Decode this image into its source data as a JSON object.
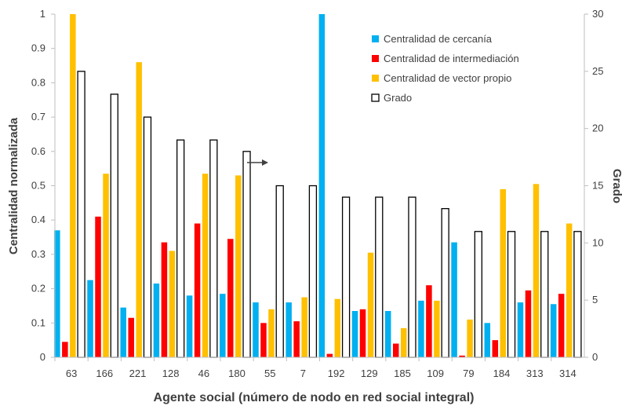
{
  "chart_data": {
    "type": "bar",
    "categories": [
      "63",
      "166",
      "221",
      "128",
      "46",
      "180",
      "55",
      "7",
      "192",
      "129",
      "185",
      "109",
      "79",
      "184",
      "313",
      "314"
    ],
    "series": [
      {
        "name": "Centralidad de cercanía",
        "axis": "left",
        "color": "#00B0F0",
        "values": [
          0.37,
          0.225,
          0.145,
          0.215,
          0.18,
          0.185,
          0.16,
          0.16,
          1.0,
          0.135,
          0.135,
          0.165,
          0.335,
          0.1,
          0.16,
          0.155
        ]
      },
      {
        "name": "Centralidad de intermediación",
        "axis": "left",
        "color": "#FF0000",
        "values": [
          0.045,
          0.41,
          0.115,
          0.335,
          0.39,
          0.345,
          0.1,
          0.105,
          0.01,
          0.14,
          0.04,
          0.21,
          0.005,
          0.05,
          0.195,
          0.185
        ]
      },
      {
        "name": "Centralidad de vector propio",
        "axis": "left",
        "color": "#FFC000",
        "values": [
          1.0,
          0.535,
          0.86,
          0.31,
          0.535,
          0.53,
          0.14,
          0.175,
          0.17,
          0.305,
          0.085,
          0.165,
          0.11,
          0.49,
          0.505,
          0.39
        ]
      },
      {
        "name": "Grado",
        "axis": "right",
        "color": "#000000",
        "style": "outline",
        "values": [
          25,
          23,
          21,
          19,
          19,
          18,
          15,
          15,
          14,
          14,
          14,
          13,
          11,
          11,
          11,
          11
        ]
      }
    ],
    "ylabel": "Centralidad normalizada",
    "y2label": "Grado",
    "xlabel": "Agente social (número de nodo en red social integral)",
    "ylim": [
      0,
      1
    ],
    "y2lim": [
      0,
      30
    ],
    "yticks": [
      "0",
      "0.1",
      "0.2",
      "0.3",
      "0.4",
      "0.5",
      "0.6",
      "0.7",
      "0.8",
      "0.9",
      "1"
    ],
    "y2ticks": [
      "0",
      "5",
      "10",
      "15",
      "20",
      "25",
      "30"
    ],
    "grid": false,
    "legend_position": "top-right",
    "annotation": "arrow pointing right toward secondary axis"
  }
}
